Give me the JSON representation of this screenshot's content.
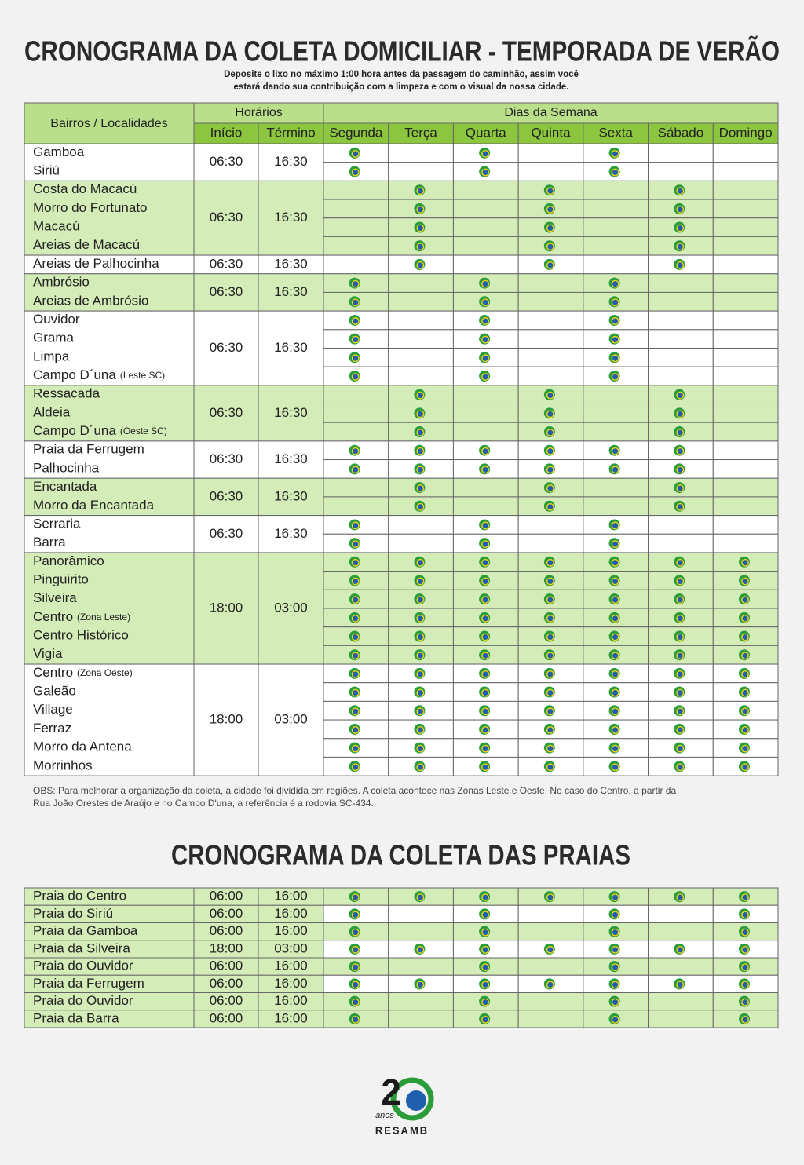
{
  "header": {
    "title": "CRONOGRAMA DA COLETA DOMICILIAR - TEMPORADA DE VERÃO",
    "subtitle_lines": [
      "Deposite o lixo no máximo 1:00 hora antes da passagem do caminhão, assim você",
      "estará dando sua contribuição com a limpeza e com o visual da nossa cidade."
    ]
  },
  "table": {
    "col_place": "Bairros / Localidades",
    "col_hours": "Horários",
    "col_start": "Início",
    "col_end": "Término",
    "col_days": "Dias da Semana",
    "days": [
      "Segunda",
      "Terça",
      "Quarta",
      "Quinta",
      "Sexta",
      "Sábado",
      "Domingo"
    ],
    "groups": [
      {
        "places": [
          {
            "name": "Gamboa"
          },
          {
            "name": "Siriú"
          }
        ],
        "start": "06:30",
        "end": "16:30",
        "fill": "#ffffff",
        "days": [
          1,
          0,
          1,
          0,
          1,
          0,
          0
        ]
      },
      {
        "places": [
          {
            "name": "Costa do Macacú"
          },
          {
            "name": "Morro do Fortunato"
          },
          {
            "name": "Macacú"
          },
          {
            "name": "Areias de Macacú"
          }
        ],
        "start": "06:30",
        "end": "16:30",
        "fill": "#d4ecb8",
        "days": [
          0,
          1,
          0,
          1,
          0,
          1,
          0
        ]
      },
      {
        "places": [
          {
            "name": "Areias de Palhocinha"
          }
        ],
        "start": "06:30",
        "end": "16:30",
        "fill": "#ffffff",
        "days": [
          0,
          1,
          0,
          1,
          0,
          1,
          0
        ]
      },
      {
        "places": [
          {
            "name": "Ambrósio"
          },
          {
            "name": "Areias de Ambrósio"
          }
        ],
        "start": "06:30",
        "end": "16:30",
        "fill": "#d4ecb8",
        "days": [
          1,
          0,
          1,
          0,
          1,
          0,
          0
        ]
      },
      {
        "places": [
          {
            "name": "Ouvidor"
          },
          {
            "name": "Grama"
          },
          {
            "name": "Limpa"
          },
          {
            "name": "Campo D´una",
            "note": "(Leste SC)"
          }
        ],
        "start": "06:30",
        "end": "16:30",
        "fill": "#ffffff",
        "days": [
          1,
          0,
          1,
          0,
          1,
          0,
          0
        ]
      },
      {
        "places": [
          {
            "name": "Ressacada"
          },
          {
            "name": "Aldeia"
          },
          {
            "name": "Campo D´una",
            "note": "(Oeste SC)"
          }
        ],
        "start": "06:30",
        "end": "16:30",
        "fill": "#d4ecb8",
        "days": [
          0,
          1,
          0,
          1,
          0,
          1,
          0
        ]
      },
      {
        "places": [
          {
            "name": "Praia da Ferrugem"
          },
          {
            "name": "Palhocinha"
          }
        ],
        "start": "06:30",
        "end": "16:30",
        "fill": "#ffffff",
        "days": [
          1,
          1,
          1,
          1,
          1,
          1,
          0
        ]
      },
      {
        "places": [
          {
            "name": "Encantada"
          },
          {
            "name": "Morro da Encantada"
          }
        ],
        "start": "06:30",
        "end": "16:30",
        "fill": "#d4ecb8",
        "days": [
          0,
          1,
          0,
          1,
          0,
          1,
          0
        ]
      },
      {
        "places": [
          {
            "name": "Serraria"
          },
          {
            "name": "Barra"
          }
        ],
        "start": "06:30",
        "end": "16:30",
        "fill": "#ffffff",
        "days": [
          1,
          0,
          1,
          0,
          1,
          0,
          0
        ]
      },
      {
        "places": [
          {
            "name": "Panorâmico"
          },
          {
            "name": "Pinguirito"
          },
          {
            "name": "Silveira"
          },
          {
            "name": "Centro",
            "note": "(Zona Leste)"
          },
          {
            "name": "Centro Histórico"
          },
          {
            "name": "Vigia"
          }
        ],
        "start": "18:00",
        "end": "03:00",
        "fill": "#d4ecb8",
        "days": [
          1,
          1,
          1,
          1,
          1,
          1,
          1
        ]
      },
      {
        "places": [
          {
            "name": "Centro",
            "note": "(Zona Oeste)"
          },
          {
            "name": "Galeão"
          },
          {
            "name": "Village"
          },
          {
            "name": "Ferraz"
          },
          {
            "name": "Morro da Antena"
          },
          {
            "name": "Morrinhos"
          }
        ],
        "start": "18:00",
        "end": "03:00",
        "fill": "#ffffff",
        "days": [
          1,
          1,
          1,
          1,
          1,
          1,
          1
        ]
      }
    ]
  },
  "note_lines": [
    "OBS: Para melhorar a organização da coleta, a cidade foi dividida em regiões. A coleta acontece nas Zonas Leste e Oeste. No caso do Centro, a partir da",
    "Rua João Orestes de Araújo e no Campo D'una, a referência é a rodovia SC-434."
  ],
  "beach_title": "CRONOGRAMA DA COLETA DAS PRAIAS",
  "beach_table": {
    "rows": [
      {
        "name": "Praia do Centro",
        "start": "06:00",
        "end": "16:00",
        "fill": "#d4ecb8",
        "days": [
          1,
          1,
          1,
          1,
          1,
          1,
          1
        ]
      },
      {
        "name": "Praia do Siriú",
        "start": "06:00",
        "end": "16:00",
        "fill": "#ffffff",
        "days": [
          1,
          0,
          1,
          0,
          1,
          0,
          1
        ]
      },
      {
        "name": "Praia da Gamboa",
        "start": "06:00",
        "end": "16:00",
        "fill": "#d4ecb8",
        "days": [
          1,
          0,
          1,
          0,
          1,
          0,
          1
        ]
      },
      {
        "name": "Praia da Silveira",
        "start": "18:00",
        "end": "03:00",
        "fill": "#ffffff",
        "days": [
          1,
          1,
          1,
          1,
          1,
          1,
          1
        ]
      },
      {
        "name": "Praia do Ouvidor",
        "start": "06:00",
        "end": "16:00",
        "fill": "#d4ecb8",
        "days": [
          1,
          0,
          1,
          0,
          1,
          0,
          1
        ]
      },
      {
        "name": "Praia da Ferrugem",
        "start": "06:00",
        "end": "16:00",
        "fill": "#ffffff",
        "days": [
          1,
          1,
          1,
          1,
          1,
          1,
          1
        ]
      },
      {
        "name": "Praia do Ouvidor",
        "start": "06:00",
        "end": "16:00",
        "fill": "#d4ecb8",
        "days": [
          1,
          0,
          1,
          0,
          1,
          0,
          1
        ]
      },
      {
        "name": "Praia da Barra",
        "start": "06:00",
        "end": "16:00",
        "fill": "#d4ecb8",
        "days": [
          1,
          0,
          1,
          0,
          1,
          0,
          1
        ]
      }
    ]
  },
  "logo": {
    "number": "2",
    "small": "anos",
    "brand": "RESAMB"
  }
}
